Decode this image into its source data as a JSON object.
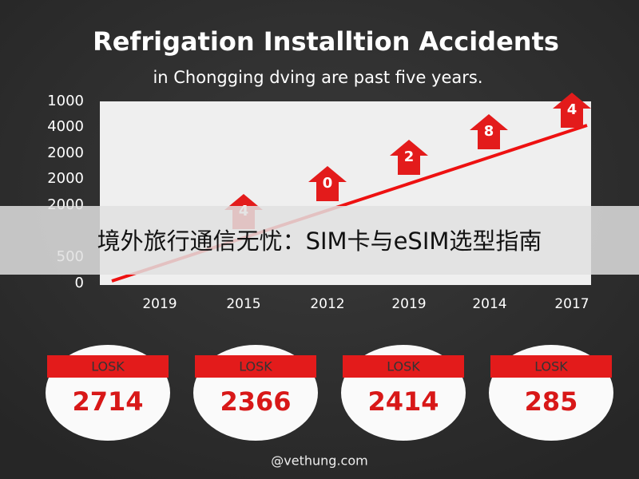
{
  "title": "Refrigation Installtion Accidents",
  "subtitle": "in Chongging dving are past five years.",
  "y_labels": [
    "1000",
    "4000",
    "2000",
    "2000",
    "2000",
    "500",
    "0"
  ],
  "x_labels": [
    "2019",
    "2015",
    "2012",
    "2019",
    "2014",
    "2017"
  ],
  "arrow_labels": [
    "4",
    "0",
    "2",
    "8",
    "4"
  ],
  "cards": [
    {
      "label": "LOSK",
      "value": "2714"
    },
    {
      "label": "LOSK",
      "value": "2366"
    },
    {
      "label": "LOSK",
      "value": "2414"
    },
    {
      "label": "LOSK",
      "value": "285"
    }
  ],
  "watermark": "@vethung.com",
  "banner": "境外旅行通信无忧：SIM卡与eSIM选型指南"
}
